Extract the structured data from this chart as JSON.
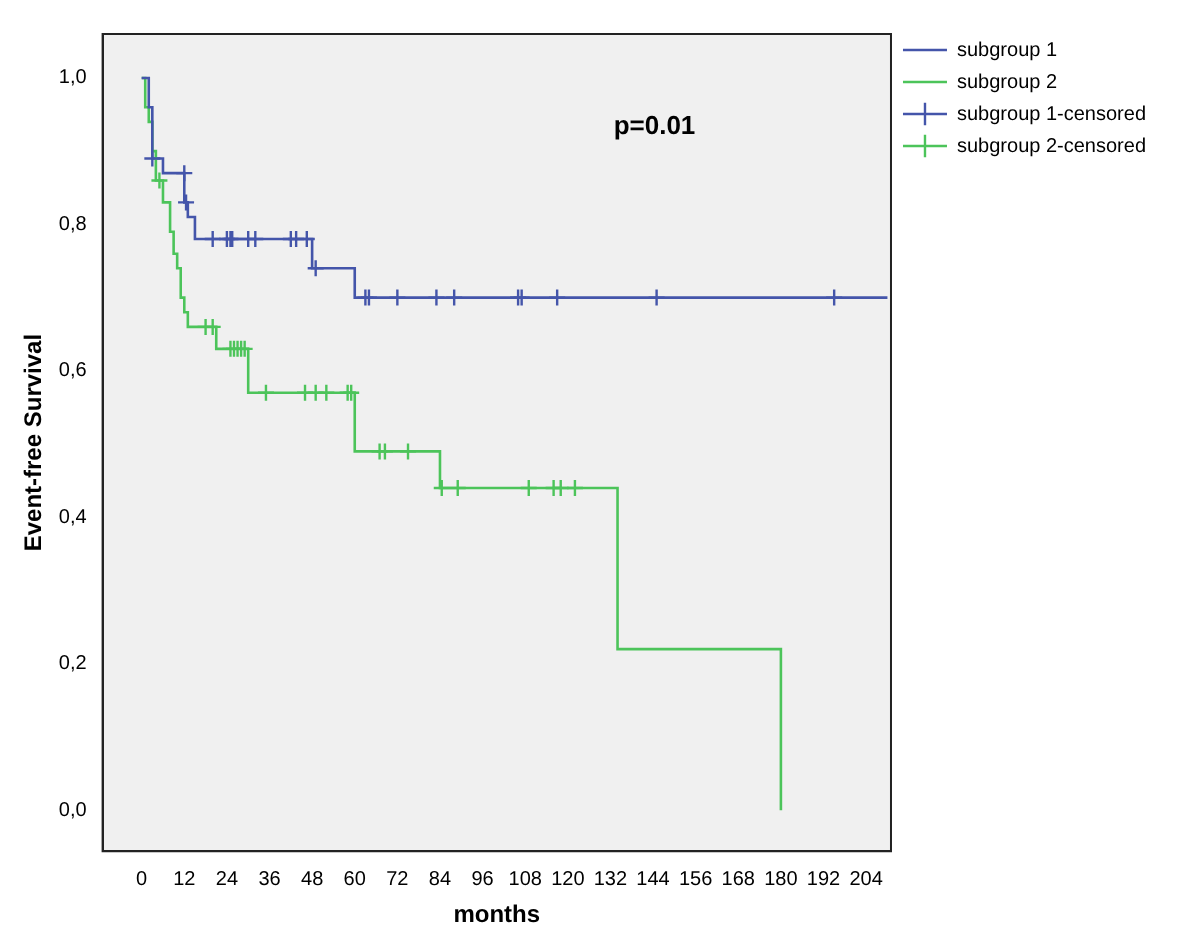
{
  "chart_data": {
    "type": "step",
    "xlabel": "months",
    "ylabel": "Event-free Survival",
    "annotations": [
      "p=0.01"
    ],
    "xlim": [
      -11,
      211
    ],
    "xticks": [
      0,
      12,
      24,
      36,
      48,
      60,
      72,
      84,
      96,
      108,
      120,
      132,
      144,
      156,
      168,
      180,
      192,
      204
    ],
    "ylim": [
      -0.056,
      1.06
    ],
    "yticks": [
      {
        "value": 0,
        "label": "0,0"
      },
      {
        "value": 0.2,
        "label": "0,2"
      },
      {
        "value": 0.4,
        "label": "0,4"
      },
      {
        "value": 0.6,
        "label": "0,6"
      },
      {
        "value": 0.8,
        "label": "0,8"
      },
      {
        "value": 1,
        "label": "1,0"
      }
    ],
    "grid": false,
    "legend": "right",
    "series": [
      {
        "name": "subgroup 1",
        "marker": "none",
        "color": "#4455aa",
        "x": [
          0,
          2,
          3,
          6,
          12,
          13,
          15,
          48,
          60,
          210
        ],
        "values": [
          1.0,
          0.96,
          0.89,
          0.87,
          0.83,
          0.81,
          0.78,
          0.74,
          0.7,
          0.7
        ]
      },
      {
        "name": "subgroup 2",
        "marker": "none",
        "color": "#4cc45a",
        "x": [
          0,
          1,
          2,
          3,
          4,
          6,
          8,
          9,
          10,
          11,
          12,
          13,
          21,
          30,
          60,
          84,
          134,
          180
        ],
        "values": [
          1.0,
          0.96,
          0.94,
          0.9,
          0.86,
          0.83,
          0.79,
          0.76,
          0.74,
          0.7,
          0.68,
          0.66,
          0.63,
          0.57,
          0.49,
          0.44,
          0.22,
          0.0
        ]
      },
      {
        "name": "subgroup 1-censored",
        "type": "scatter",
        "marker": "cross",
        "color": "#4455aa",
        "x": [
          3,
          12,
          12.5,
          20,
          24,
          25,
          25.5,
          30,
          32,
          42,
          43.5,
          46.5,
          49,
          63,
          64,
          72,
          83,
          88,
          106,
          107,
          117,
          145,
          195
        ],
        "values": [
          0.89,
          0.87,
          0.83,
          0.78,
          0.78,
          0.78,
          0.78,
          0.78,
          0.78,
          0.78,
          0.78,
          0.78,
          0.74,
          0.7,
          0.7,
          0.7,
          0.7,
          0.7,
          0.7,
          0.7,
          0.7,
          0.7,
          0.7
        ]
      },
      {
        "name": "subgroup 2-censored",
        "type": "scatter",
        "marker": "cross",
        "color": "#4cc45a",
        "x": [
          5,
          18,
          20,
          25,
          26,
          27,
          28,
          29,
          35,
          46,
          49,
          52,
          58,
          59,
          67,
          68.5,
          75,
          84.5,
          89,
          109,
          116,
          118,
          122
        ],
        "values": [
          0.86,
          0.66,
          0.66,
          0.63,
          0.63,
          0.63,
          0.63,
          0.63,
          0.57,
          0.57,
          0.57,
          0.57,
          0.57,
          0.57,
          0.49,
          0.49,
          0.49,
          0.44,
          0.44,
          0.44,
          0.44,
          0.44,
          0.44
        ]
      }
    ]
  }
}
